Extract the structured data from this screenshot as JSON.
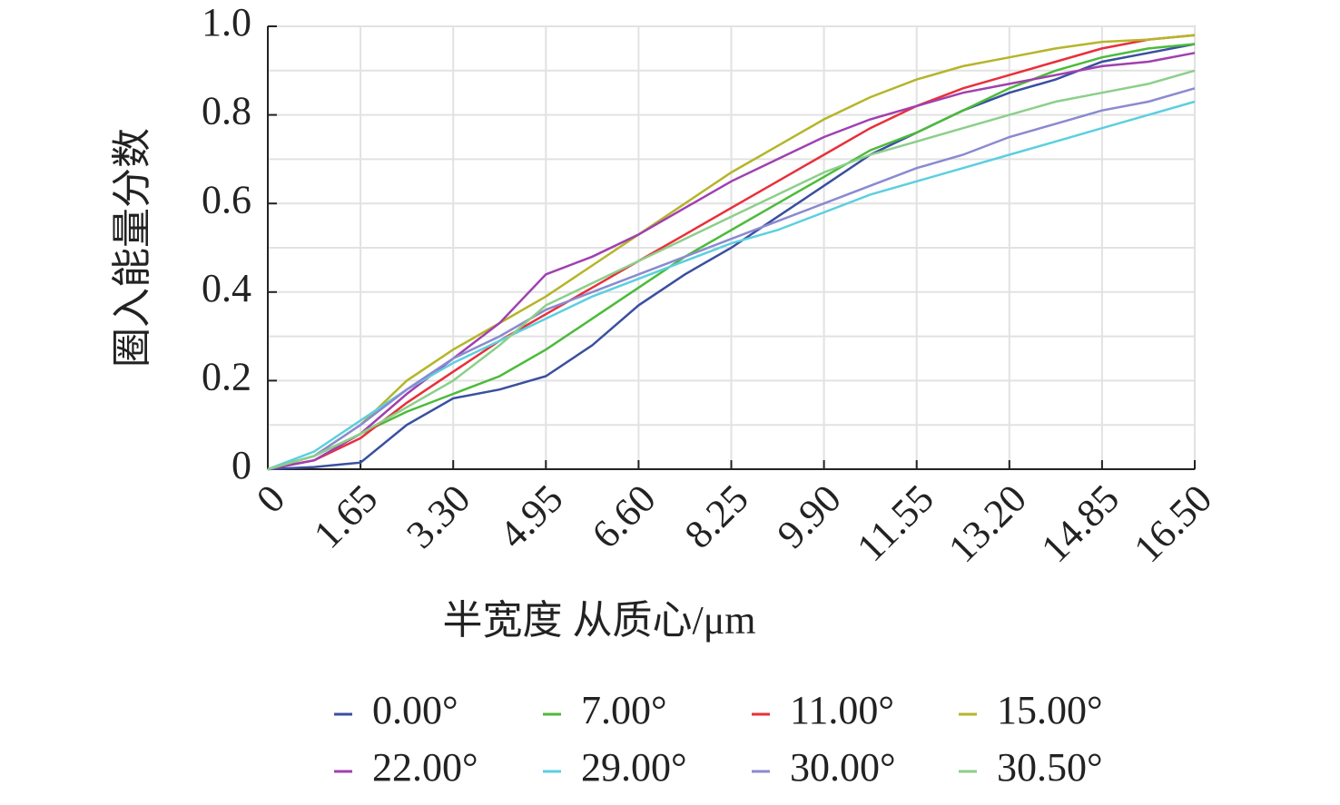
{
  "chart_data": {
    "type": "line",
    "x_label": "半宽度 从质心/μm",
    "y_label": "圈入能量分数",
    "x": [
      0,
      0.825,
      1.65,
      2.475,
      3.3,
      4.125,
      4.95,
      5.775,
      6.6,
      7.425,
      8.25,
      9.075,
      9.9,
      10.725,
      11.55,
      12.375,
      13.2,
      14.025,
      14.85,
      15.675,
      16.5
    ],
    "series": [
      {
        "name": "0.00°",
        "color": "#3a4fa0",
        "values": [
          0,
          0.005,
          0.015,
          0.1,
          0.16,
          0.18,
          0.21,
          0.28,
          0.37,
          0.44,
          0.5,
          0.57,
          0.64,
          0.71,
          0.76,
          0.81,
          0.85,
          0.88,
          0.92,
          0.94,
          0.96
        ]
      },
      {
        "name": "7.00°",
        "color": "#4cbb3a",
        "values": [
          0,
          0.03,
          0.08,
          0.13,
          0.17,
          0.21,
          0.27,
          0.34,
          0.41,
          0.48,
          0.54,
          0.6,
          0.66,
          0.72,
          0.76,
          0.81,
          0.86,
          0.9,
          0.93,
          0.95,
          0.96
        ]
      },
      {
        "name": "11.00°",
        "color": "#e8303a",
        "values": [
          0,
          0.02,
          0.07,
          0.15,
          0.22,
          0.29,
          0.35,
          0.41,
          0.47,
          0.53,
          0.59,
          0.65,
          0.71,
          0.77,
          0.82,
          0.86,
          0.89,
          0.92,
          0.95,
          0.97,
          0.98
        ]
      },
      {
        "name": "15.00°",
        "color": "#b5b52a",
        "values": [
          0,
          0.03,
          0.1,
          0.2,
          0.27,
          0.33,
          0.39,
          0.46,
          0.53,
          0.6,
          0.67,
          0.73,
          0.79,
          0.84,
          0.88,
          0.91,
          0.93,
          0.95,
          0.965,
          0.97,
          0.98
        ]
      },
      {
        "name": "22.00°",
        "color": "#a040b0",
        "values": [
          0,
          0.02,
          0.08,
          0.17,
          0.25,
          0.33,
          0.44,
          0.48,
          0.53,
          0.59,
          0.65,
          0.7,
          0.75,
          0.79,
          0.82,
          0.85,
          0.87,
          0.89,
          0.91,
          0.92,
          0.94
        ]
      },
      {
        "name": "29.00°",
        "color": "#5ccfdf",
        "values": [
          0,
          0.04,
          0.11,
          0.18,
          0.24,
          0.29,
          0.34,
          0.39,
          0.43,
          0.47,
          0.51,
          0.54,
          0.58,
          0.62,
          0.65,
          0.68,
          0.71,
          0.74,
          0.77,
          0.8,
          0.83
        ]
      },
      {
        "name": "30.00°",
        "color": "#8a8ad0",
        "values": [
          0,
          0.03,
          0.1,
          0.18,
          0.25,
          0.3,
          0.36,
          0.4,
          0.44,
          0.48,
          0.52,
          0.56,
          0.6,
          0.64,
          0.68,
          0.71,
          0.75,
          0.78,
          0.81,
          0.83,
          0.86
        ]
      },
      {
        "name": "30.50°",
        "color": "#8ccf8a",
        "values": [
          0,
          0.03,
          0.08,
          0.14,
          0.2,
          0.28,
          0.37,
          0.42,
          0.47,
          0.52,
          0.57,
          0.62,
          0.67,
          0.71,
          0.74,
          0.77,
          0.8,
          0.83,
          0.85,
          0.87,
          0.9
        ]
      }
    ],
    "xlim": [
      0,
      16.5
    ],
    "xticks": [
      0,
      1.65,
      {
        "value": 3.3,
        "label": "3.30"
      },
      4.95,
      {
        "value": 6.6,
        "label": "6.60"
      },
      8.25,
      {
        "value": 9.9,
        "label": "9.90"
      },
      11.55,
      {
        "value": 13.2,
        "label": "13.20"
      },
      14.85,
      {
        "value": 16.5,
        "label": "16.50"
      }
    ],
    "ylim": [
      0,
      1
    ],
    "yticks": [
      0,
      0.2,
      0.4,
      0.6,
      0.8,
      {
        "value": 1,
        "label": "1.0"
      }
    ],
    "y_minor_grid": [
      0.1,
      0.3,
      0.5,
      0.7,
      0.9
    ],
    "grid": true,
    "legend": "bottom"
  }
}
